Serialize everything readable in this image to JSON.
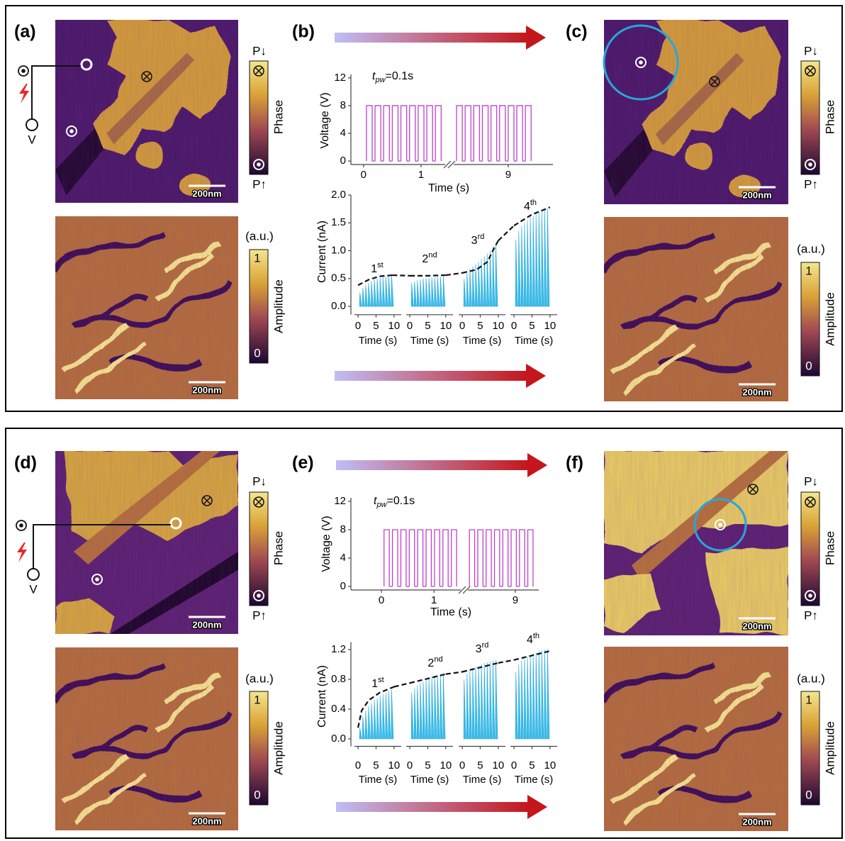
{
  "rows": [
    {
      "left": {
        "label": "(a)",
        "voltage_label": "V",
        "scale_bars": [
          "200nm",
          "200nm"
        ],
        "phase_colorbar": {
          "top": "P↓",
          "title": "Phase",
          "bottom": "P↑"
        },
        "amplitude_colorbar": {
          "unit": "(a.u.)",
          "title": "Amplitude",
          "ticks": [
            1,
            0
          ]
        }
      },
      "middle": {
        "label": "(b)",
        "voltage_chart": {
          "type": "line",
          "y_label": "Voltage (V)",
          "x_label": "Time (s)",
          "annotation": {
            "symbol": "t",
            "subscript": "pw",
            "text": "=0.1s"
          },
          "ylim": [
            -0.5,
            12.5
          ],
          "yticks": [
            0,
            4,
            8,
            12
          ],
          "xlim_segments": [
            [
              -0.22,
              1.42
            ],
            [
              8.05,
              9.78
            ]
          ],
          "xticks": [
            0,
            1,
            9
          ],
          "pulses": {
            "starts": [
              0.05,
              0.2,
              0.35,
              0.5,
              0.65,
              0.8,
              0.95,
              1.1,
              1.25,
              8.1,
              8.25,
              8.4,
              8.55,
              8.7,
              8.85,
              9.0,
              9.15,
              9.3
            ],
            "ends": [
              0.15,
              0.3,
              0.45,
              0.6,
              0.75,
              0.9,
              1.05,
              1.2,
              1.35,
              8.2,
              8.35,
              8.5,
              8.65,
              8.8,
              8.95,
              9.1,
              9.25,
              9.4
            ],
            "values": [
              8,
              8,
              8,
              8,
              8,
              8,
              8,
              8,
              8,
              8,
              8,
              8,
              8,
              8,
              8,
              8,
              8,
              8
            ]
          }
        },
        "current_chart": {
          "type": "line",
          "y_label": "Current (nA)",
          "ylim": [
            -0.15,
            2.0
          ],
          "yticks": [
            {
              "value": 0,
              "label": "0.0"
            },
            {
              "value": 0.5,
              "label": "0.5"
            },
            {
              "value": 1,
              "label": "1.0"
            },
            {
              "value": 1.5,
              "label": "1.5"
            },
            {
              "value": 2,
              "label": "2.0"
            }
          ],
          "segments": [
            {
              "ordinal": {
                "number": "1",
                "suffix": "st"
              },
              "x_label": "Time (s)",
              "xlim": [
                -1,
                12
              ],
              "xticks": [
                0,
                5,
                10
              ],
              "spike_x": [
                0.4,
                1.2,
                2.0,
                2.8,
                3.6,
                4.4,
                5.2,
                6.0,
                6.8,
                7.6,
                8.4,
                9.2
              ],
              "spike_values": [
                0.25,
                0.33,
                0.38,
                0.42,
                0.45,
                0.48,
                0.5,
                0.52,
                0.53,
                0.54,
                0.55,
                0.56
              ],
              "trend_x": [
                0,
                3,
                6,
                9.5
              ],
              "trend_values": [
                0.38,
                0.48,
                0.54,
                0.56
              ]
            },
            {
              "ordinal": {
                "number": "2",
                "suffix": "nd"
              },
              "x_label": "Time (s)",
              "xlim": [
                -1,
                12
              ],
              "xticks": [
                0,
                5,
                10
              ],
              "spike_x": [
                0.4,
                1.2,
                2.0,
                2.8,
                3.6,
                4.4,
                5.2,
                6.0,
                6.8,
                7.6,
                8.4,
                9.2
              ],
              "spike_values": [
                0.42,
                0.45,
                0.47,
                0.48,
                0.5,
                0.5,
                0.51,
                0.52,
                0.52,
                0.53,
                0.53,
                0.54
              ],
              "trend_x": [
                0,
                5,
                10
              ],
              "trend_values": [
                0.55,
                0.55,
                0.56
              ]
            },
            {
              "ordinal": {
                "number": "3",
                "suffix": "rd"
              },
              "x_label": "Time (s)",
              "xlim": [
                -1,
                12
              ],
              "xticks": [
                0,
                5,
                10
              ],
              "spike_x": [
                0.4,
                1.2,
                2.0,
                2.8,
                3.6,
                4.4,
                5.2,
                6.0,
                6.8,
                7.6,
                8.4,
                9.2
              ],
              "spike_values": [
                0.5,
                0.6,
                0.68,
                0.72,
                0.76,
                0.8,
                0.85,
                0.9,
                0.95,
                1.0,
                1.08,
                1.12
              ],
              "trend_x": [
                0,
                4,
                7,
                8.5,
                10
              ],
              "trend_values": [
                0.6,
                0.66,
                0.8,
                1.0,
                1.18
              ]
            },
            {
              "ordinal": {
                "number": "4",
                "suffix": "th"
              },
              "x_label": "Time (s)",
              "xlim": [
                -1,
                12
              ],
              "xticks": [
                0,
                5,
                10
              ],
              "spike_x": [
                0.4,
                1.2,
                2.0,
                2.8,
                3.6,
                4.4,
                5.2,
                6.0,
                6.8,
                7.6,
                8.4,
                9.2
              ],
              "spike_values": [
                1.2,
                1.35,
                1.45,
                1.5,
                1.55,
                1.6,
                1.62,
                1.66,
                1.7,
                1.72,
                1.74,
                1.76
              ],
              "trend_x": [
                0,
                5,
                10
              ],
              "trend_values": [
                1.45,
                1.65,
                1.78
              ]
            }
          ]
        }
      },
      "right": {
        "label": "(c)",
        "scale_bars": [
          "200nm",
          "200nm"
        ],
        "phase_colorbar": {
          "top": "P↓",
          "title": "Phase",
          "bottom": "P↑"
        },
        "amplitude_colorbar": {
          "unit": "(a.u.)",
          "title": "Amplitude",
          "ticks": [
            1,
            0
          ]
        }
      }
    },
    {
      "left": {
        "label": "(d)",
        "voltage_label": "V",
        "scale_bars": [
          "200nm",
          "200nm"
        ],
        "phase_colorbar": {
          "top": "P↓",
          "title": "Phase",
          "bottom": "P↑"
        },
        "amplitude_colorbar": {
          "unit": "(a.u.)",
          "title": "Amplitude",
          "ticks": [
            1,
            0
          ]
        }
      },
      "middle": {
        "label": "(e)",
        "voltage_chart": {
          "type": "line",
          "y_label": "Voltage (V)",
          "x_label": "Time (s)",
          "annotation": {
            "symbol": "t",
            "subscript": "pw",
            "text": "=0.1s"
          },
          "ylim": [
            -0.5,
            12.5
          ],
          "yticks": [
            0,
            4,
            8,
            12
          ],
          "xlim_segments": [
            [
              -0.58,
              1.51
            ],
            [
              8.09,
              9.45
            ]
          ],
          "xticks": [
            0,
            1,
            9
          ],
          "pulses": {
            "starts": [
              0.05,
              0.21,
              0.37,
              0.53,
              0.69,
              0.85,
              1.01,
              1.17,
              1.33,
              8.12,
              8.28,
              8.44,
              8.6,
              8.76,
              8.92,
              9.08,
              9.24
            ],
            "ends": [
              0.15,
              0.31,
              0.47,
              0.63,
              0.79,
              0.95,
              1.11,
              1.27,
              1.43,
              8.22,
              8.38,
              8.54,
              8.7,
              8.86,
              9.02,
              9.18,
              9.34
            ],
            "values": [
              8,
              8,
              8,
              8,
              8,
              8,
              8,
              8,
              8,
              8,
              8,
              8,
              8,
              8,
              8,
              8,
              8
            ]
          }
        },
        "current_chart": {
          "type": "line",
          "y_label": "Current (nA)",
          "ylim": [
            -0.1,
            1.3
          ],
          "yticks": [
            {
              "value": 0,
              "label": "0.0"
            },
            {
              "value": 0.4,
              "label": "0.4"
            },
            {
              "value": 0.8,
              "label": "0.8"
            },
            {
              "value": 1.2,
              "label": "1.2"
            }
          ],
          "segments": [
            {
              "ordinal": {
                "number": "1",
                "suffix": "st"
              },
              "x_label": "Time (s)",
              "xlim": [
                -1,
                12
              ],
              "xticks": [
                0,
                5,
                10
              ],
              "spike_x": [
                0.4,
                1.2,
                2.0,
                2.8,
                3.6,
                4.4,
                5.2,
                6.0,
                6.8,
                7.6,
                8.4,
                9.2
              ],
              "spike_values": [
                0.15,
                0.3,
                0.38,
                0.44,
                0.48,
                0.52,
                0.55,
                0.58,
                0.6,
                0.62,
                0.64,
                0.66
              ],
              "trend_x": [
                0,
                1,
                3,
                6,
                10
              ],
              "trend_values": [
                0.15,
                0.38,
                0.52,
                0.62,
                0.7
              ]
            },
            {
              "ordinal": {
                "number": "2",
                "suffix": "nd"
              },
              "x_label": "Time (s)",
              "xlim": [
                -1,
                12
              ],
              "xticks": [
                0,
                5,
                10
              ],
              "spike_x": [
                0.4,
                1.2,
                2.0,
                2.8,
                3.6,
                4.4,
                5.2,
                6.0,
                6.8,
                7.6,
                8.4,
                9.2
              ],
              "spike_values": [
                0.62,
                0.68,
                0.72,
                0.75,
                0.77,
                0.8,
                0.82,
                0.84,
                0.85,
                0.86,
                0.87,
                0.88
              ],
              "trend_x": [
                0,
                10
              ],
              "trend_values": [
                0.75,
                0.87
              ]
            },
            {
              "ordinal": {
                "number": "3",
                "suffix": "rd"
              },
              "x_label": "Time (s)",
              "xlim": [
                -1,
                12
              ],
              "xticks": [
                0,
                5,
                10
              ],
              "spike_x": [
                0.4,
                1.2,
                2.0,
                2.8,
                3.6,
                4.4,
                5.2,
                6.0,
                6.8,
                7.6,
                8.4,
                9.2
              ],
              "spike_values": [
                0.8,
                0.88,
                0.92,
                0.95,
                0.97,
                0.98,
                1.0,
                1.02,
                1.03,
                1.04,
                1.05,
                1.06
              ],
              "trend_x": [
                0,
                10
              ],
              "trend_values": [
                0.9,
                1.02
              ]
            },
            {
              "ordinal": {
                "number": "4",
                "suffix": "th"
              },
              "x_label": "Time (s)",
              "xlim": [
                -1,
                12
              ],
              "xticks": [
                0,
                5,
                10
              ],
              "spike_x": [
                0.4,
                1.2,
                2.0,
                2.8,
                3.6,
                4.4,
                5.2,
                6.0,
                6.8,
                7.6,
                8.4,
                9.2
              ],
              "spike_values": [
                0.9,
                1.0,
                1.05,
                1.08,
                1.1,
                1.12,
                1.14,
                1.16,
                1.18,
                1.19,
                1.2,
                1.21
              ],
              "trend_x": [
                0,
                10
              ],
              "trend_values": [
                1.06,
                1.18
              ]
            }
          ]
        }
      },
      "right": {
        "label": "(f)",
        "scale_bars": [
          "200nm",
          "200nm"
        ],
        "phase_colorbar": {
          "top": "P↓",
          "title": "Phase",
          "bottom": "P↑"
        },
        "amplitude_colorbar": {
          "unit": "(a.u.)",
          "title": "Amplitude",
          "ticks": [
            1,
            0
          ]
        }
      }
    }
  ]
}
